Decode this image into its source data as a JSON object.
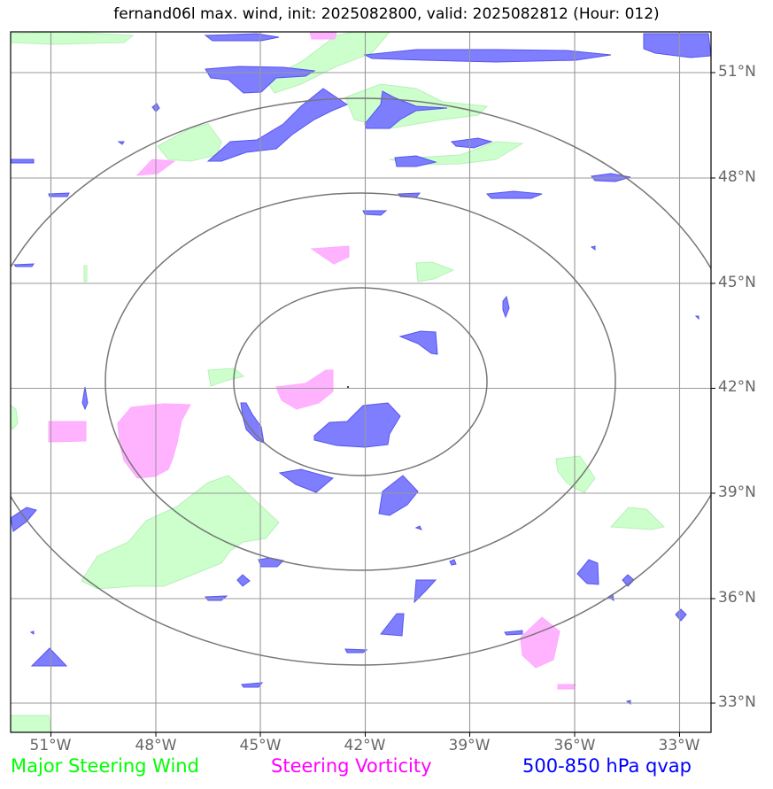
{
  "title": "fernand06l max. wind, init: 2025082800, valid: 2025082812 (Hour: 012)",
  "lat_labels": [
    "51°N",
    "48°N",
    "45°N",
    "42°N",
    "39°N",
    "36°N",
    "33°N"
  ],
  "lon_labels": [
    "51°W",
    "48°W",
    "45°W",
    "42°W",
    "39°W",
    "36°W",
    "33°W"
  ],
  "legend": {
    "wind": {
      "label": "Major Steering Wind",
      "color": "#00ff00"
    },
    "vorticity": {
      "label": "Steering Vorticity",
      "color": "#ff00ff"
    },
    "qvap": {
      "label": "500-850 hPa qvap",
      "color": "#0000ff"
    }
  },
  "colors": {
    "wind_fill": "#ccffcc",
    "vorticity_fill": "#ffaaff",
    "qvap_fill": "#6666ff",
    "grid": "#999999",
    "range_rings": "#777777"
  }
}
